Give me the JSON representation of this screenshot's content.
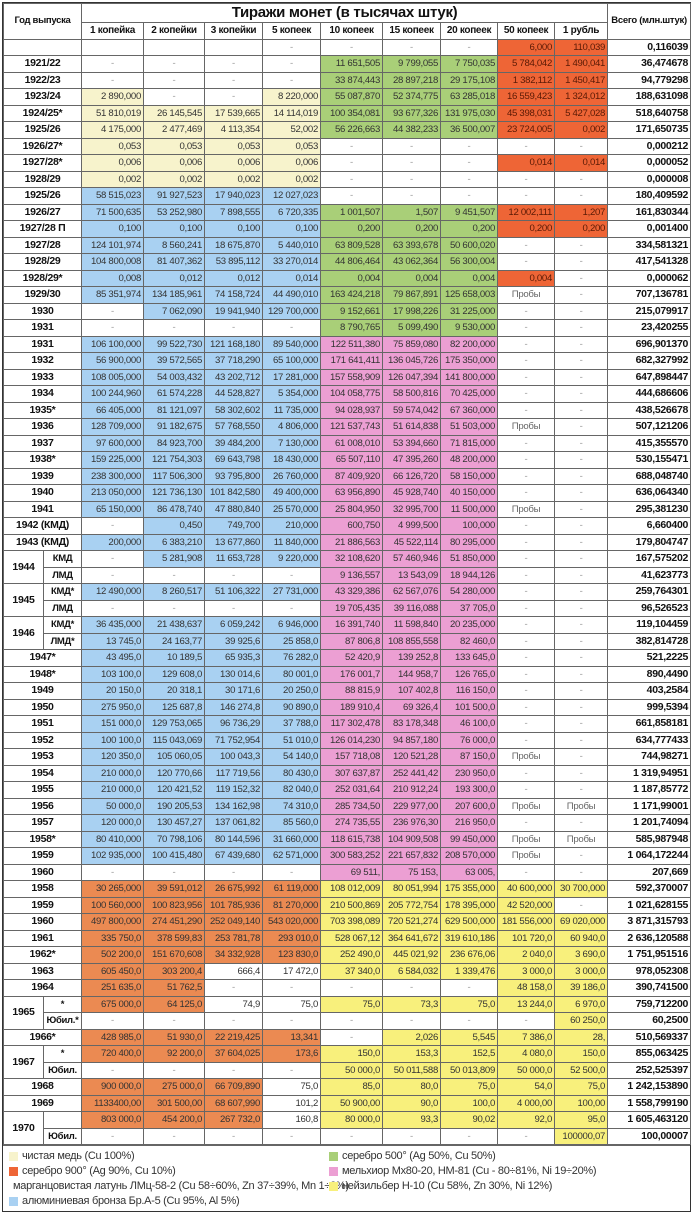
{
  "header": {
    "year_label": "Год выпуска",
    "title": "Тиражи монет (в тысячах штук)",
    "total_label": "Всего (млн.штук)",
    "columns": [
      "1 копейка",
      "2 копейки",
      "3 копейки",
      "5 копеек",
      "10 копеек",
      "15 копеек",
      "20 копеек",
      "50 копеек",
      "1 рубль"
    ]
  },
  "materials": {
    "c": "#f7f3cc",
    "g": "#a9cf78",
    "r": "#ee6536",
    "m": "#ec9fd3",
    "b": "#eb8a52",
    "n": "#f8f07c",
    "a": "#a9d1f2"
  },
  "rows": [
    {
      "y": "",
      "c": [
        "",
        "",
        "",
        "-",
        "-",
        "-",
        "-",
        "6,000",
        "110,039"
      ],
      "t": "0,116039",
      "mat": "_______rr"
    },
    {
      "y": "1921/22",
      "c": [
        "-",
        "-",
        "-",
        "-",
        "11 651,505",
        "9 799,055",
        "7 750,035",
        "5 784,042",
        "1 490,041"
      ],
      "t": "36,474678",
      "mat": "____gggrr"
    },
    {
      "y": "1922/23",
      "c": [
        "-",
        "-",
        "-",
        "-",
        "33 874,443",
        "28 897,218",
        "29 175,108",
        "1 382,112",
        "1 450,417"
      ],
      "t": "94,779298",
      "mat": "____gggrr"
    },
    {
      "y": "1923/24",
      "c": [
        "2 890,000",
        "-",
        "-",
        "8 220,000",
        "55 087,870",
        "52 374,775",
        "63 285,018",
        "16 559,423",
        "1 324,012"
      ],
      "t": "188,631098",
      "mat": "c__cgggrr"
    },
    {
      "y": "1924/25*",
      "c": [
        "51 810,019",
        "26 145,545",
        "17 539,665",
        "14 114,019",
        "100 354,081",
        "93 677,326",
        "131 975,030",
        "45 398,031",
        "5 427,028"
      ],
      "t": "518,640758",
      "mat": "ccccgggrr"
    },
    {
      "y": "1925/26",
      "c": [
        "4 175,000",
        "2 477,469",
        "4 113,354",
        "52,002",
        "56 226,663",
        "44 382,233",
        "36 500,007",
        "23 724,005",
        "0,002"
      ],
      "t": "171,650735",
      "mat": "ccccgggrr"
    },
    {
      "y": "1926/27*",
      "c": [
        "0,053",
        "0,053",
        "0,053",
        "0,053",
        "-",
        "-",
        "-",
        "-",
        "-"
      ],
      "t": "0,000212",
      "mat": "cccc_____"
    },
    {
      "y": "1927/28*",
      "c": [
        "0,006",
        "0,006",
        "0,006",
        "0,006",
        "-",
        "-",
        "-",
        "0,014",
        "0,014"
      ],
      "t": "0,000052",
      "mat": "cccc___rr"
    },
    {
      "y": "1928/29",
      "c": [
        "0,002",
        "0,002",
        "0,002",
        "0,002",
        "-",
        "-",
        "-",
        "-",
        "-"
      ],
      "t": "0,000008",
      "mat": "cccc_____"
    },
    {
      "y": "1925/26",
      "c": [
        "58 515,023",
        "91 927,523",
        "17 940,023",
        "12 027,023",
        "-",
        "-",
        "-",
        "-",
        "-"
      ],
      "t": "180,409592",
      "mat": "aaaa_____"
    },
    {
      "y": "1926/27",
      "c": [
        "71 500,635",
        "53 252,980",
        "7 898,555",
        "6 720,335",
        "1 001,507",
        "1,507",
        "9 451,507",
        "12 002,111",
        "1,207"
      ],
      "t": "161,830344",
      "mat": "aaaagggrr"
    },
    {
      "y": "1927/28 П",
      "c": [
        "0,100",
        "0,100",
        "0,100",
        "0,100",
        "0,200",
        "0,200",
        "0,200",
        "0,200",
        "0,200"
      ],
      "t": "0,001400",
      "mat": "aaaagggrr"
    },
    {
      "y": "1927/28",
      "c": [
        "124 101,974",
        "8 560,241",
        "18 675,870",
        "5 440,010",
        "63 809,528",
        "63 393,678",
        "50 600,020",
        "-",
        "-"
      ],
      "t": "334,581321",
      "mat": "aaaaggg__"
    },
    {
      "y": "1928/29",
      "c": [
        "104 800,008",
        "81 407,362",
        "53 895,112",
        "33 270,014",
        "44 806,464",
        "43 062,364",
        "56 300,004",
        "-",
        "-"
      ],
      "t": "417,541328",
      "mat": "aaaaggg__"
    },
    {
      "y": "1928/29*",
      "c": [
        "0,008",
        "0,012",
        "0,012",
        "0,014",
        "0,004",
        "0,004",
        "0,004",
        "0,004",
        "-"
      ],
      "t": "0,000062",
      "mat": "aaaagggr_"
    },
    {
      "y": "1929/30",
      "c": [
        "85 351,974",
        "134 185,961",
        "74 158,724",
        "44 490,010",
        "163 424,218",
        "79 867,891",
        "125 658,003",
        "Пробы",
        "-"
      ],
      "t": "707,136781",
      "mat": "aaaaggg__"
    },
    {
      "y": "1930",
      "c": [
        "-",
        "7 062,090",
        "19 941,940",
        "129 700,000",
        "9 152,661",
        "17 998,226",
        "31 225,000",
        "-",
        "-"
      ],
      "t": "215,079917",
      "mat": "_aaaggg__"
    },
    {
      "y": "1931",
      "c": [
        "-",
        "-",
        "-",
        "-",
        "8 790,765",
        "5 099,490",
        "9 530,000",
        "-",
        "-"
      ],
      "t": "23,420255",
      "mat": "____ggg__"
    },
    {
      "y": "1931",
      "c": [
        "106 100,000",
        "99 522,730",
        "121 168,180",
        "89 540,000",
        "122 511,380",
        "75 859,080",
        "82 200,000",
        "-",
        "-"
      ],
      "t": "696,901370",
      "mat": "aaaammm__"
    },
    {
      "y": "1932",
      "c": [
        "56 900,000",
        "39 572,565",
        "37 718,290",
        "65 100,000",
        "171 641,411",
        "136 045,726",
        "175 350,000",
        "-",
        "-"
      ],
      "t": "682,327992",
      "mat": "aaaammm__"
    },
    {
      "y": "1933",
      "c": [
        "108 005,000",
        "54 003,432",
        "43 202,712",
        "17 281,000",
        "157 558,909",
        "126 047,394",
        "141 800,000",
        "-",
        "-"
      ],
      "t": "647,898447",
      "mat": "aaaammm__"
    },
    {
      "y": "1934",
      "c": [
        "100 244,960",
        "61 574,228",
        "44 528,827",
        "5 354,000",
        "104 058,775",
        "58 500,816",
        "70 425,000",
        "-",
        "-"
      ],
      "t": "444,686606",
      "mat": "aaaammm__"
    },
    {
      "y": "1935*",
      "c": [
        "66 405,000",
        "81 121,097",
        "58 302,602",
        "11 735,000",
        "94 028,937",
        "59 574,042",
        "67 360,000",
        "-",
        "-"
      ],
      "t": "438,526678",
      "mat": "aaaammm__"
    },
    {
      "y": "1936",
      "c": [
        "128 709,000",
        "91 182,675",
        "57 768,550",
        "4 806,000",
        "121 537,743",
        "51 614,838",
        "51 503,000",
        "Пробы",
        "-"
      ],
      "t": "507,121206",
      "mat": "aaaammm__"
    },
    {
      "y": "1937",
      "c": [
        "97 600,000",
        "84 923,700",
        "39 484,200",
        "7 130,000",
        "61 008,010",
        "53 394,660",
        "71 815,000",
        "-",
        "-"
      ],
      "t": "415,355570",
      "mat": "aaaammm__"
    },
    {
      "y": "1938*",
      "c": [
        "159 225,000",
        "121 754,303",
        "69 643,798",
        "18 430,000",
        "65 507,110",
        "47 395,260",
        "48 200,000",
        "-",
        "-"
      ],
      "t": "530,155471",
      "mat": "aaaammm__"
    },
    {
      "y": "1939",
      "c": [
        "238 300,000",
        "117 506,300",
        "93 795,800",
        "26 760,000",
        "87 409,920",
        "66 126,720",
        "58 150,000",
        "-",
        "-"
      ],
      "t": "688,048740",
      "mat": "aaaammm__"
    },
    {
      "y": "1940",
      "c": [
        "213 050,000",
        "121 736,130",
        "101 842,580",
        "49 400,000",
        "63 956,890",
        "45 928,740",
        "40 150,000",
        "-",
        "-"
      ],
      "t": "636,064340",
      "mat": "aaaammm__"
    },
    {
      "y": "1941",
      "c": [
        "65 150,000",
        "86 478,740",
        "47 880,840",
        "25 570,000",
        "25 804,950",
        "32 995,700",
        "11 500,000",
        "Пробы",
        "-"
      ],
      "t": "295,381230",
      "mat": "aaaammm__"
    },
    {
      "y": "1942 (КМД)",
      "c": [
        "-",
        "0,450",
        "749,700",
        "210,000",
        "600,750",
        "4 999,500",
        "100,000",
        "-",
        "-"
      ],
      "t": "6,660400",
      "mat": "_aaammm__"
    },
    {
      "y": "1943 (КМД)",
      "c": [
        "200,000",
        "6 383,210",
        "13 677,860",
        "11 840,000",
        "21 886,563",
        "45 522,114",
        "80 295,000",
        "-",
        "-"
      ],
      "t": "179,804747",
      "mat": "aaaammm__"
    },
    {
      "y": "1944",
      "span": 2,
      "sub": "КМД",
      "c": [
        "-",
        "5 281,908",
        "11 653,728",
        "9 220,000",
        "32 108,620",
        "57 460,946",
        "51 850,000",
        "-",
        "-"
      ],
      "t": "167,575202",
      "mat": "_aaammm__"
    },
    {
      "sub": "ЛМД",
      "c": [
        "-",
        "-",
        "-",
        "-",
        "9 136,557",
        "13 543,09",
        "18 944,126",
        "-",
        "-"
      ],
      "t": "41,623773",
      "mat": "____mmm__"
    },
    {
      "y": "1945",
      "span": 2,
      "sub": "КМД*",
      "c": [
        "12 490,000",
        "8 260,517",
        "51 106,322",
        "27 731,000",
        "43 329,386",
        "62 567,076",
        "54 280,000",
        "-",
        "-"
      ],
      "t": "259,764301",
      "mat": "aaaammm__"
    },
    {
      "sub": "ЛМД",
      "c": [
        "-",
        "-",
        "-",
        "-",
        "19 705,435",
        "39 116,088",
        "37 705,0",
        "-",
        "-"
      ],
      "t": "96,526523",
      "mat": "____mmm__"
    },
    {
      "y": "1946",
      "span": 2,
      "sub": "КМД*",
      "c": [
        "36 435,000",
        "21 438,637",
        "6 059,242",
        "6 946,000",
        "16 391,740",
        "11 598,840",
        "20 235,000",
        "-",
        "-"
      ],
      "t": "119,104459",
      "mat": "aaaammm__"
    },
    {
      "sub": "ЛМД*",
      "c": [
        "13 745,0",
        "24 163,77",
        "39 925,6",
        "25 858,0",
        "87 806,8",
        "108 855,558",
        "82 460,0",
        "-",
        "-"
      ],
      "t": "382,814728",
      "mat": "aaaammm__"
    },
    {
      "y": "1947*",
      "c": [
        "43 495,0",
        "10 189,5",
        "65 935,3",
        "76 282,0",
        "52 420,9",
        "139 252,8",
        "133 645,0",
        "-",
        "-"
      ],
      "t": "521,2225",
      "mat": "aaaammm__"
    },
    {
      "y": "1948*",
      "c": [
        "103 100,0",
        "129 608,0",
        "130 014,6",
        "80 001,0",
        "176 001,7",
        "144 958,7",
        "126 765,0",
        "-",
        "-"
      ],
      "t": "890,4490",
      "mat": "aaaammm__"
    },
    {
      "y": "1949",
      "c": [
        "20 150,0",
        "20 318,1",
        "30 171,6",
        "20 250,0",
        "88 815,9",
        "107 402,8",
        "116 150,0",
        "-",
        "-"
      ],
      "t": "403,2584",
      "mat": "aaaammm__"
    },
    {
      "y": "1950",
      "c": [
        "275 950,0",
        "125 687,8",
        "146 274,8",
        "90 890,0",
        "189 910,4",
        "69 326,4",
        "101 500,0",
        "-",
        "-"
      ],
      "t": "999,5394",
      "mat": "aaaammm__"
    },
    {
      "y": "1951",
      "c": [
        "151 000,0",
        "129 753,065",
        "96 736,29",
        "37 788,0",
        "117 302,478",
        "83 178,348",
        "46 100,0",
        "-",
        "-"
      ],
      "t": "661,858181",
      "mat": "aaaammm__"
    },
    {
      "y": "1952",
      "c": [
        "100 100,0",
        "115 043,069",
        "71 752,954",
        "51 010,0",
        "126 014,230",
        "94 857,180",
        "76 000,0",
        "-",
        "-"
      ],
      "t": "634,777433",
      "mat": "aaaammm__"
    },
    {
      "y": "1953",
      "c": [
        "120 350,0",
        "105 060,05",
        "100 043,3",
        "54 140,0",
        "157 718,08",
        "120 521,28",
        "87 150,0",
        "Пробы",
        "-"
      ],
      "t": "744,98271",
      "mat": "aaaammm__"
    },
    {
      "y": "1954",
      "c": [
        "210 000,0",
        "120 770,66",
        "117 719,56",
        "80 430,0",
        "307 637,87",
        "252 441,42",
        "230 950,0",
        "-",
        "-"
      ],
      "t": "1 319,94951",
      "mat": "aaaammm__"
    },
    {
      "y": "1955",
      "c": [
        "210 000,0",
        "120 421,52",
        "119 152,32",
        "82 040,0",
        "252 031,64",
        "210 912,24",
        "193 300,0",
        "-",
        "-"
      ],
      "t": "1 187,85772",
      "mat": "aaaammm__"
    },
    {
      "y": "1956",
      "c": [
        "50 000,0",
        "190 205,53",
        "134 162,98",
        "74 310,0",
        "285 734,50",
        "229 977,00",
        "207 600,0",
        "Пробы",
        "Пробы"
      ],
      "t": "1 171,99001",
      "mat": "aaaammm__"
    },
    {
      "y": "1957",
      "c": [
        "120 000,0",
        "130 457,27",
        "137 061,82",
        "85 560,0",
        "274 735,55",
        "236 976,30",
        "216 950,0",
        "-",
        "-"
      ],
      "t": "1 201,74094",
      "mat": "aaaammm__"
    },
    {
      "y": "1958*",
      "c": [
        "80 410,000",
        "70 798,106",
        "80 144,596",
        "31 660,000",
        "118 615,738",
        "104 909,508",
        "99 450,000",
        "Пробы",
        "Пробы"
      ],
      "t": "585,987948",
      "mat": "aaaammm__"
    },
    {
      "y": "1959",
      "c": [
        "102 935,000",
        "100 415,480",
        "67 439,680",
        "62 571,000",
        "300 583,252",
        "221 657,832",
        "208 570,000",
        "Пробы",
        "-"
      ],
      "t": "1 064,172244",
      "mat": "aaaammm__"
    },
    {
      "y": "1960",
      "c": [
        "-",
        "-",
        "-",
        "-",
        "69 511,",
        "75 153,",
        "63 005,",
        "-",
        "-"
      ],
      "t": "207,669",
      "mat": "____mmm__"
    },
    {
      "y": "1958",
      "c": [
        "30 265,000",
        "39 591,012",
        "26 675,992",
        "61 119,000",
        "108 012,009",
        "80 051,994",
        "175 355,000",
        "40 600,000",
        "30 700,000"
      ],
      "t": "592,370007",
      "mat": "bbbbnnnnn"
    },
    {
      "y": "1959",
      "c": [
        "100 560,000",
        "100 823,956",
        "101 785,936",
        "81 270,000",
        "210 500,869",
        "205 772,754",
        "178 395,000",
        "42 520,000",
        "-"
      ],
      "t": "1 021,628155",
      "mat": "bbbbnnnn_"
    },
    {
      "y": "1960",
      "c": [
        "497 800,000",
        "274 451,290",
        "252 049,140",
        "543 020,000",
        "703 398,089",
        "720 521,274",
        "629 500,000",
        "181 556,000",
        "69 020,000"
      ],
      "t": "3 871,315793",
      "mat": "bbbbnnnnn"
    },
    {
      "y": "1961",
      "c": [
        "335 750,0",
        "378 599,83",
        "253 781,78",
        "293 010,0",
        "528 067,12",
        "364 641,672",
        "319 610,186",
        "101 720,0",
        "60 940,0"
      ],
      "t": "2 636,120588",
      "mat": "bbbbnnnnn"
    },
    {
      "y": "1962*",
      "c": [
        "502 200,0",
        "151 670,608",
        "34 332,928",
        "123 830,0",
        "252 490,0",
        "445 021,92",
        "236 676,06",
        "2 040,0",
        "3 690,0"
      ],
      "t": "1 751,951516",
      "mat": "bbbbnnnnn"
    },
    {
      "y": "1963",
      "c": [
        "605 450,0",
        "303 200,4",
        "666,4",
        "17 472,0",
        "37 340,0",
        "6 584,032",
        "1 339,476",
        "3 000,0",
        "3 000,0"
      ],
      "t": "978,052308",
      "mat": "bb__nnnnn"
    },
    {
      "y": "1964",
      "c": [
        "251 635,0",
        "51 762,5",
        "-",
        "-",
        "-",
        "-",
        "-",
        "48 158,0",
        "39 186,0"
      ],
      "t": "390,741500",
      "mat": "bb_____nn"
    },
    {
      "y": "1965",
      "span": 2,
      "sub": "*",
      "c": [
        "675 000,0",
        "64 125,0",
        "74,9",
        "75,0",
        "75,0",
        "73,3",
        "75,0",
        "13 244,0",
        "6 970,0"
      ],
      "t": "759,712200",
      "mat": "bb__nnnnn"
    },
    {
      "sub": "Юбил.*",
      "c": [
        "-",
        "-",
        "-",
        "-",
        "-",
        "-",
        "-",
        "-",
        "60 250,0"
      ],
      "t": "60,2500",
      "mat": "________n"
    },
    {
      "y": "1966*",
      "c": [
        "428 985,0",
        "51 930,0",
        "22 219,425",
        "13,341",
        "-",
        "2,026",
        "5,545",
        "7 386,0",
        "28,"
      ],
      "t": "510,569337",
      "mat": "bbbb_nnnn"
    },
    {
      "y": "1967",
      "span": 2,
      "sub": "*",
      "c": [
        "720 400,0",
        "92 200,0",
        "37 604,025",
        "173,6",
        "150,0",
        "153,3",
        "152,5",
        "4 080,0",
        "150,0"
      ],
      "t": "855,063425",
      "mat": "bbbbnnnnn"
    },
    {
      "sub": "Юбил.",
      "c": [
        "-",
        "-",
        "-",
        "-",
        "50 000,0",
        "50 011,588",
        "50 013,809",
        "50 000,0",
        "52 500,0"
      ],
      "t": "252,525397",
      "mat": "____nnnnn"
    },
    {
      "y": "1968",
      "c": [
        "900 000,0",
        "275 000,0",
        "66 709,890",
        "75,0",
        "85,0",
        "80,0",
        "75,0",
        "54,0",
        "75,0"
      ],
      "t": "1 242,153890",
      "mat": "bbb_nnnnn"
    },
    {
      "y": "1969",
      "c": [
        "1133400,00",
        "301 500,00",
        "68 607,990",
        "101,2",
        "50 900,00",
        "90,0",
        "100,0",
        "4 000,00",
        "100,00"
      ],
      "t": "1 558,799190",
      "mat": "bbb_nnnnn"
    },
    {
      "y": "1970",
      "span": 2,
      "sub": "",
      "c": [
        "803 000,0",
        "454 200,0",
        "267 732,0",
        "160,8",
        "80 000,0",
        "93,3",
        "90,02",
        "92,0",
        "95,0"
      ],
      "t": "1 605,463120",
      "mat": "bbb_nnnnn"
    },
    {
      "sub": "Юбил.",
      "c": [
        "-",
        "-",
        "-",
        "-",
        "-",
        "-",
        "-",
        "-",
        "100000,07"
      ],
      "t": "100,00007",
      "mat": "________n"
    }
  ],
  "legend": [
    {
      "m": "c",
      "label": "чистая медь (Cu 100%)"
    },
    {
      "m": "g",
      "label": "серебро 500° (Ag 50%, Cu 50%)"
    },
    {
      "m": "r",
      "label": "серебро 900° (Ag 90%, Cu 10%)"
    },
    {
      "m": "m",
      "label": "мельхиор Мх80-20, НМ-81 (Cu - 80÷81%, Ni 19÷20%)"
    },
    {
      "m": "b",
      "label": "марганцовистая латунь ЛМц-58-2 (Cu 58÷60%, Zn 37÷39%, Mn 1÷2%)"
    },
    {
      "m": "n",
      "label": "нейзильбер Н-10 (Cu 58%, Zn 30%, Ni 12%)"
    },
    {
      "m": "a",
      "label": "алюминиевая бронза Бр.А-5 (Cu 95%, Al 5%)"
    }
  ]
}
